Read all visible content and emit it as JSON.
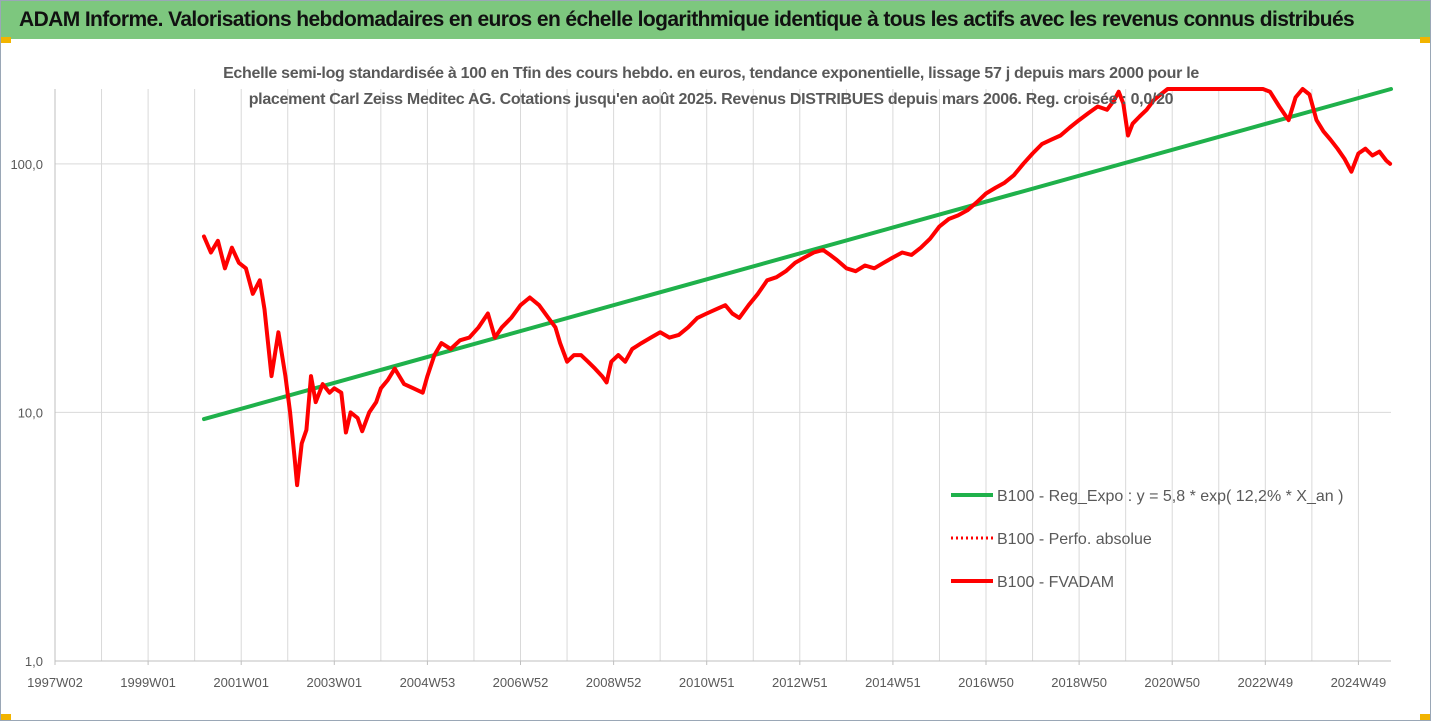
{
  "banner": {
    "title": "ADAM Informe. Valorisations hebdomadaires en euros en échelle logarithmique identique à tous les actifs avec les revenus connus distribués"
  },
  "colors": {
    "banner_bg": "#7dc77e",
    "corner_accent": "#f2b400",
    "trend": "#1fb14b",
    "price": "#ff0000",
    "grid": "#d9d9d9",
    "axis_text": "#595959"
  },
  "chart_data": {
    "type": "line",
    "title_lines": [
      "Echelle semi-log standardisée à 100 en Tfin des cours hebdo. en euros, tendance exponentielle, lissage 57 j depuis mars 2000 pour le",
      "placement Carl Zeiss Meditec AG. Cotations jusqu'en août 2025. Revenus DISTRIBUES depuis mars 2006. Reg. croisée : 0,0/20"
    ],
    "y_scale": "log",
    "ylim": [
      1,
      200
    ],
    "y_ticks": [
      {
        "value": 1,
        "label": "1,0"
      },
      {
        "value": 10,
        "label": "10,0"
      },
      {
        "value": 100,
        "label": "100,0"
      }
    ],
    "x_range": [
      1997.0,
      2025.7
    ],
    "x_ticks": [
      {
        "value": 1997.0,
        "label": "1997W02"
      },
      {
        "value": 1999.0,
        "label": "1999W01"
      },
      {
        "value": 2001.0,
        "label": "2001W01"
      },
      {
        "value": 2003.0,
        "label": "2003W01"
      },
      {
        "value": 2005.0,
        "label": "2004W53"
      },
      {
        "value": 2007.0,
        "label": "2006W52"
      },
      {
        "value": 2009.0,
        "label": "2008W52"
      },
      {
        "value": 2011.0,
        "label": "2010W51"
      },
      {
        "value": 2013.0,
        "label": "2012W51"
      },
      {
        "value": 2015.0,
        "label": "2014W51"
      },
      {
        "value": 2017.0,
        "label": "2016W50"
      },
      {
        "value": 2019.0,
        "label": "2018W50"
      },
      {
        "value": 2021.0,
        "label": "2020W50"
      },
      {
        "value": 2023.0,
        "label": "2022W49"
      },
      {
        "value": 2025.0,
        "label": "2024W49"
      }
    ],
    "grid": "vertical gridlines at each year, horizontal gridlines at decades",
    "legend_position": "right",
    "series": [
      {
        "name": "B100 - Reg_Expo : y = 5,8 * exp( 12,2% *  X_an )",
        "style": "solid",
        "color": "#1fb14b",
        "points": [
          [
            2000.2,
            9.4
          ],
          [
            2025.7,
            200
          ]
        ]
      },
      {
        "name": "B100 - Perfo. absolue",
        "style": "dotted",
        "color": "#ff0000",
        "points": []
      },
      {
        "name": "B100 - FVADAM",
        "style": "solid",
        "color": "#ff0000",
        "points": [
          [
            2000.2,
            51
          ],
          [
            2000.35,
            44
          ],
          [
            2000.5,
            49
          ],
          [
            2000.65,
            38
          ],
          [
            2000.8,
            46
          ],
          [
            2000.95,
            40
          ],
          [
            2001.1,
            38
          ],
          [
            2001.25,
            30
          ],
          [
            2001.4,
            34
          ],
          [
            2001.5,
            26
          ],
          [
            2001.65,
            14
          ],
          [
            2001.8,
            21
          ],
          [
            2001.95,
            14
          ],
          [
            2002.05,
            10
          ],
          [
            2002.15,
            6.5
          ],
          [
            2002.2,
            5.1
          ],
          [
            2002.3,
            7.5
          ],
          [
            2002.4,
            8.5
          ],
          [
            2002.5,
            14
          ],
          [
            2002.6,
            11
          ],
          [
            2002.75,
            13
          ],
          [
            2002.9,
            12
          ],
          [
            2003.0,
            12.5
          ],
          [
            2003.15,
            12
          ],
          [
            2003.25,
            8.3
          ],
          [
            2003.35,
            10
          ],
          [
            2003.5,
            9.5
          ],
          [
            2003.6,
            8.4
          ],
          [
            2003.75,
            10
          ],
          [
            2003.9,
            11
          ],
          [
            2004.0,
            12.5
          ],
          [
            2004.15,
            13.5
          ],
          [
            2004.3,
            15
          ],
          [
            2004.5,
            13
          ],
          [
            2004.7,
            12.5
          ],
          [
            2004.9,
            12
          ],
          [
            2005.0,
            14
          ],
          [
            2005.15,
            17
          ],
          [
            2005.3,
            19
          ],
          [
            2005.5,
            18
          ],
          [
            2005.7,
            19.5
          ],
          [
            2005.9,
            20
          ],
          [
            2006.1,
            22
          ],
          [
            2006.3,
            25
          ],
          [
            2006.45,
            20
          ],
          [
            2006.6,
            22
          ],
          [
            2006.8,
            24
          ],
          [
            2007.0,
            27
          ],
          [
            2007.2,
            29
          ],
          [
            2007.4,
            27
          ],
          [
            2007.6,
            24
          ],
          [
            2007.75,
            22
          ],
          [
            2007.85,
            19
          ],
          [
            2008.0,
            16
          ],
          [
            2008.15,
            17
          ],
          [
            2008.3,
            17
          ],
          [
            2008.45,
            16
          ],
          [
            2008.6,
            15
          ],
          [
            2008.75,
            14
          ],
          [
            2008.85,
            13.2
          ],
          [
            2008.95,
            16
          ],
          [
            2009.1,
            17
          ],
          [
            2009.25,
            16
          ],
          [
            2009.4,
            18
          ],
          [
            2009.6,
            19
          ],
          [
            2009.8,
            20
          ],
          [
            2010.0,
            21
          ],
          [
            2010.2,
            20
          ],
          [
            2010.4,
            20.5
          ],
          [
            2010.6,
            22
          ],
          [
            2010.8,
            24
          ],
          [
            2011.0,
            25
          ],
          [
            2011.2,
            26
          ],
          [
            2011.4,
            27
          ],
          [
            2011.55,
            25
          ],
          [
            2011.7,
            24
          ],
          [
            2011.9,
            27
          ],
          [
            2012.1,
            30
          ],
          [
            2012.3,
            34
          ],
          [
            2012.5,
            35
          ],
          [
            2012.7,
            37
          ],
          [
            2012.9,
            40
          ],
          [
            2013.1,
            42
          ],
          [
            2013.3,
            44
          ],
          [
            2013.5,
            45
          ],
          [
            2013.65,
            43
          ],
          [
            2013.8,
            41
          ],
          [
            2014.0,
            38
          ],
          [
            2014.2,
            37
          ],
          [
            2014.4,
            39
          ],
          [
            2014.6,
            38
          ],
          [
            2014.8,
            40
          ],
          [
            2015.0,
            42
          ],
          [
            2015.2,
            44
          ],
          [
            2015.4,
            43
          ],
          [
            2015.6,
            46
          ],
          [
            2015.8,
            50
          ],
          [
            2016.0,
            56
          ],
          [
            2016.2,
            60
          ],
          [
            2016.4,
            62
          ],
          [
            2016.6,
            65
          ],
          [
            2016.8,
            70
          ],
          [
            2017.0,
            76
          ],
          [
            2017.2,
            80
          ],
          [
            2017.4,
            84
          ],
          [
            2017.6,
            90
          ],
          [
            2017.8,
            100
          ],
          [
            2018.0,
            110
          ],
          [
            2018.2,
            120
          ],
          [
            2018.4,
            125
          ],
          [
            2018.6,
            130
          ],
          [
            2018.8,
            140
          ],
          [
            2019.0,
            150
          ],
          [
            2019.2,
            160
          ],
          [
            2019.4,
            170
          ],
          [
            2019.6,
            165
          ],
          [
            2019.75,
            180
          ],
          [
            2019.85,
            195
          ],
          [
            2019.95,
            175
          ],
          [
            2020.05,
            130
          ],
          [
            2020.15,
            145
          ],
          [
            2020.3,
            155
          ],
          [
            2020.45,
            165
          ],
          [
            2020.6,
            180
          ],
          [
            2020.75,
            190
          ],
          [
            2020.9,
            200
          ],
          [
            2022.8,
            200
          ],
          [
            2022.95,
            205
          ],
          [
            2023.1,
            195
          ],
          [
            2023.3,
            170
          ],
          [
            2023.5,
            150
          ],
          [
            2023.65,
            185
          ],
          [
            2023.8,
            205
          ],
          [
            2023.95,
            190
          ],
          [
            2024.1,
            150
          ],
          [
            2024.25,
            135
          ],
          [
            2024.4,
            125
          ],
          [
            2024.55,
            115
          ],
          [
            2024.7,
            105
          ],
          [
            2024.85,
            93
          ],
          [
            2025.0,
            110
          ],
          [
            2025.15,
            115
          ],
          [
            2025.3,
            108
          ],
          [
            2025.45,
            112
          ],
          [
            2025.6,
            103
          ],
          [
            2025.68,
            100
          ]
        ]
      }
    ]
  }
}
